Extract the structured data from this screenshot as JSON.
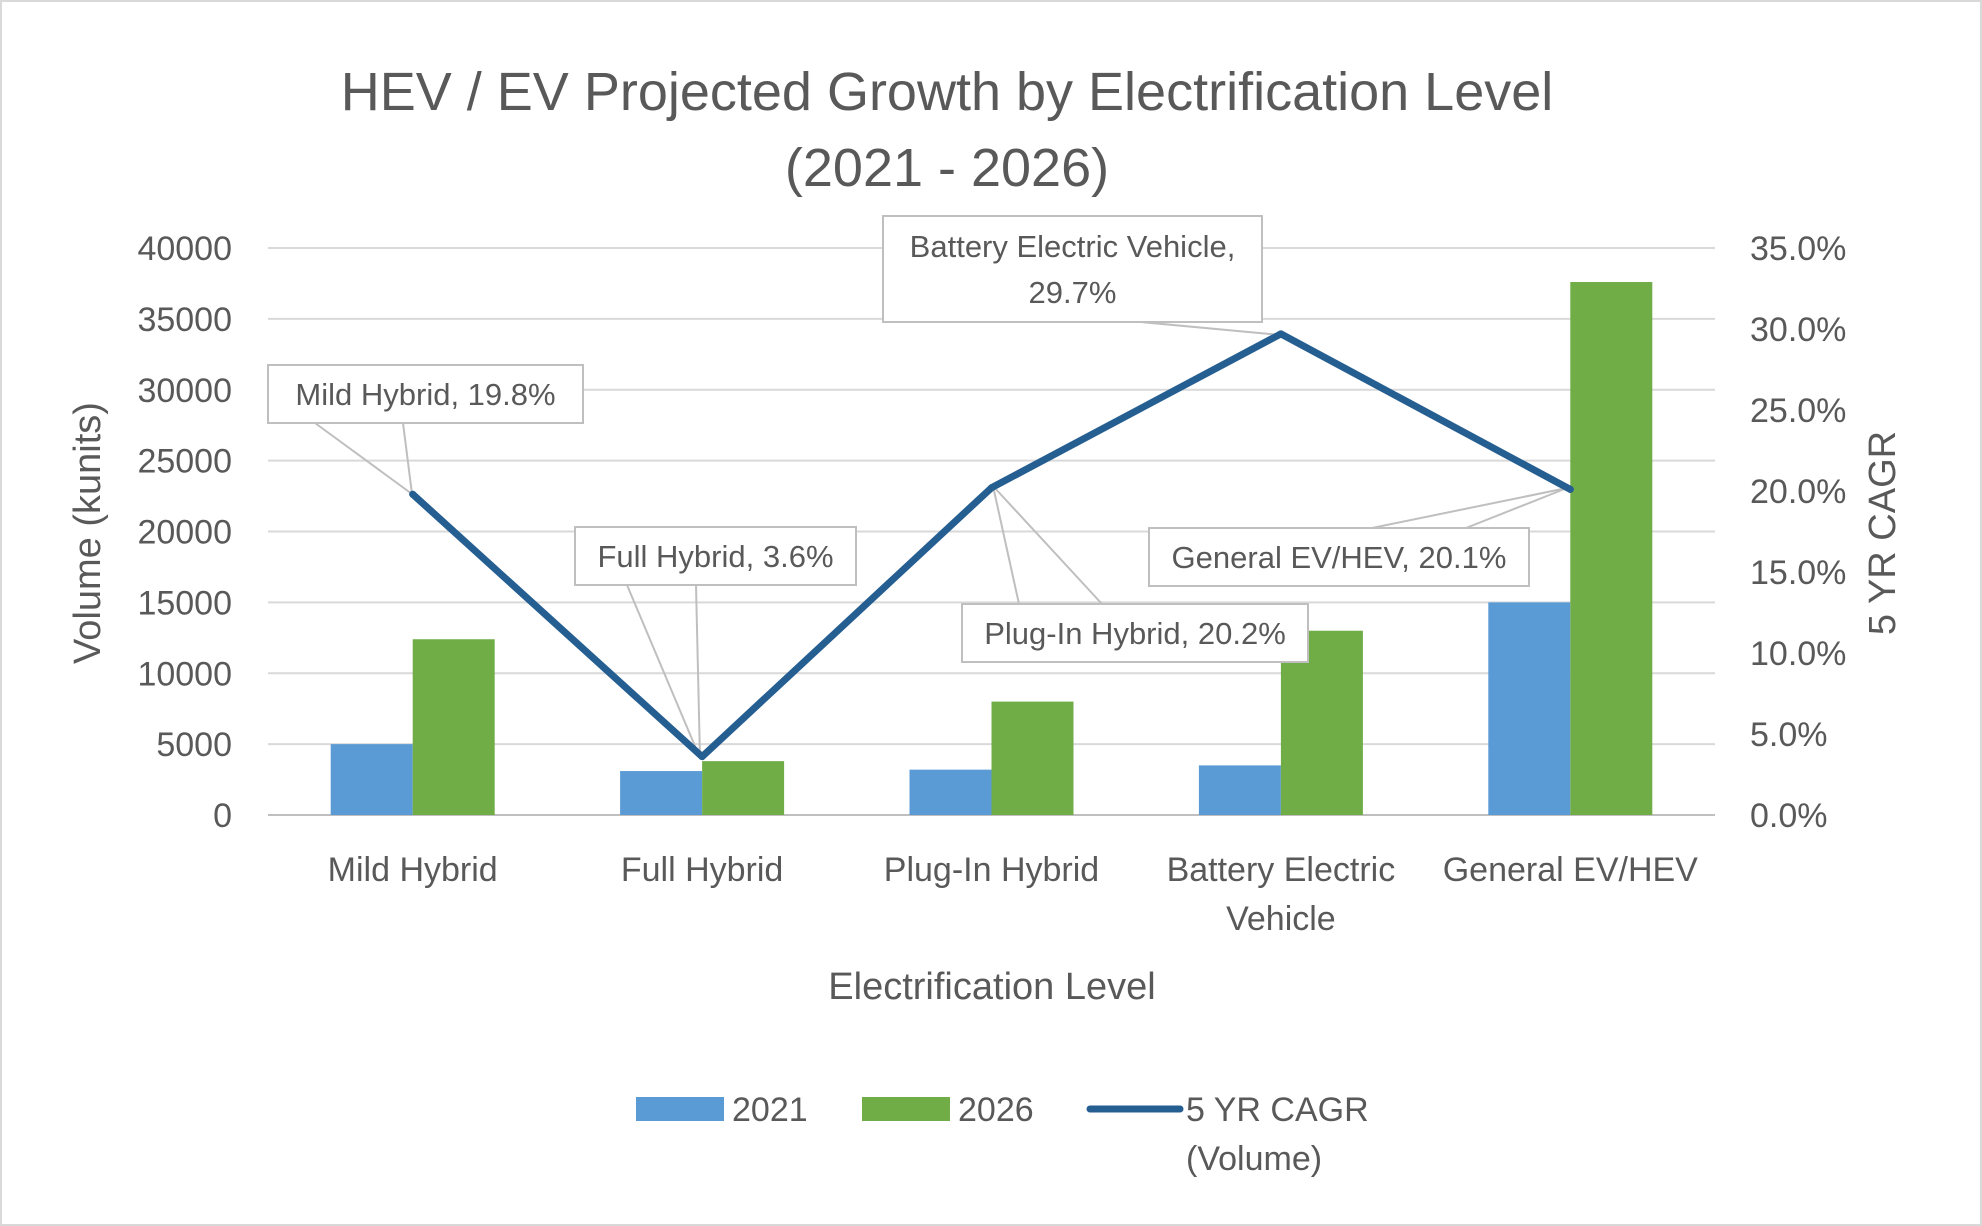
{
  "chart_data": {
    "type": "bar",
    "title": "HEV / EV Projected Growth by Electrification Level",
    "subtitle": "(2021 - 2026)",
    "xlabel": "Electrification Level",
    "ylabel": "Volume (kunits)",
    "y2label": "5 YR CAGR",
    "ylim": [
      0,
      40000
    ],
    "y2lim": [
      0,
      35
    ],
    "grid": true,
    "legend_position": "bottom",
    "categories": [
      [
        "Mild Hybrid"
      ],
      [
        "Full Hybrid"
      ],
      [
        "Plug-In Hybrid"
      ],
      [
        "Battery Electric",
        "Vehicle"
      ],
      [
        "General EV/HEV"
      ]
    ],
    "y_ticks": [
      "0",
      "5000",
      "10000",
      "15000",
      "20000",
      "25000",
      "30000",
      "35000",
      "40000"
    ],
    "y2_ticks": [
      "0.0%",
      "5.0%",
      "10.0%",
      "15.0%",
      "20.0%",
      "25.0%",
      "30.0%",
      "35.0%"
    ],
    "series": [
      {
        "name": "2021",
        "type": "bar",
        "color": "#5b9bd5",
        "values": [
          5000,
          3100,
          3200,
          3500,
          15000
        ]
      },
      {
        "name": "2026",
        "type": "bar",
        "color": "#70ad47",
        "values": [
          12400,
          3800,
          8000,
          13000,
          37600
        ]
      },
      {
        "name": "5 YR CAGR",
        "name_line2": "(Volume)",
        "type": "line",
        "axis": "secondary",
        "color": "#255e91",
        "values": [
          19.8,
          3.6,
          20.2,
          29.7,
          20.1
        ]
      }
    ],
    "annotations": [
      [
        "Mild Hybrid, 19.8%"
      ],
      [
        "Full Hybrid, 3.6%"
      ],
      [
        "Plug-In Hybrid, 20.2%"
      ],
      [
        "Battery Electric Vehicle,",
        "29.7%"
      ],
      [
        "General EV/HEV, 20.1%"
      ]
    ]
  }
}
